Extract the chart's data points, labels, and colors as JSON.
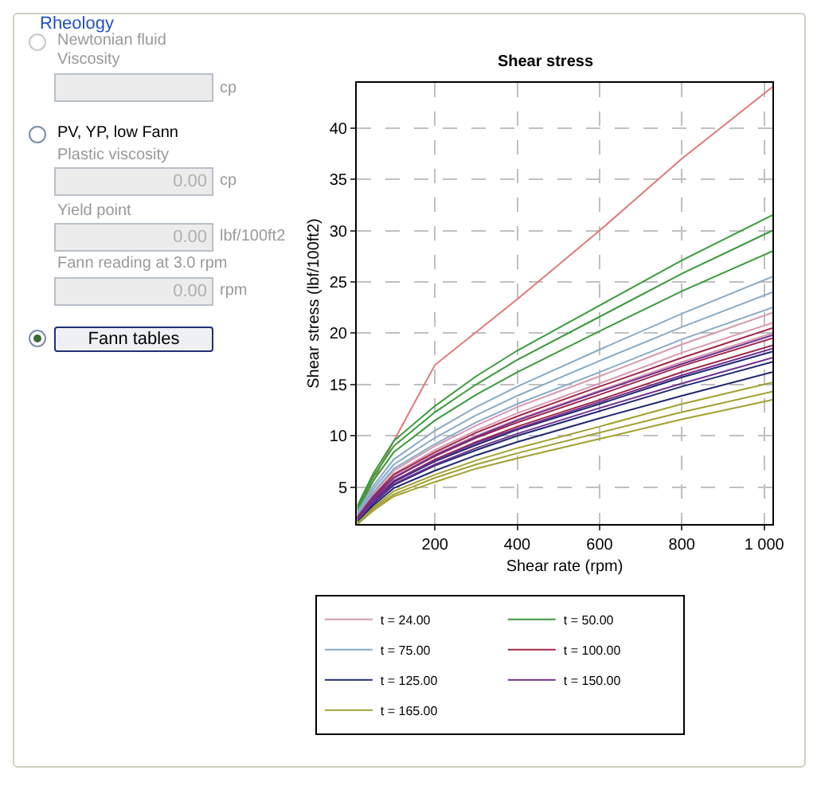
{
  "chart_data": {
    "type": "line",
    "title": "Shear stress",
    "xlabel": "Shear rate (rpm)",
    "ylabel": "Shear stress (lbf/100ft2)",
    "annotations": [
      "Rheology",
      "Newtonian fluid",
      "Viscosity",
      "cp",
      "PV, YP, low Fann",
      "Plastic viscosity",
      "0.00",
      "cp",
      "Yield point",
      "0.00",
      "lbf/100ft2",
      "Fann reading at 3.0 rpm",
      "0.00",
      "rpm",
      "Fann tables"
    ],
    "x": [
      12,
      50,
      100,
      200,
      300,
      400,
      600,
      800,
      1020
    ],
    "xlim": [
      10,
      1020
    ],
    "xticks": [
      200,
      400,
      600,
      800,
      {
        "value": 1000,
        "label": "1 000"
      }
    ],
    "ylim": [
      1.4,
      44.4
    ],
    "yticks": [
      5,
      10,
      15,
      20,
      25,
      30,
      35,
      40
    ],
    "grid": true,
    "legend": "bottom",
    "line_style": "solid",
    "series": [
      {
        "color": "#e07878",
        "x": [
          12,
          70,
          100,
          200,
          300,
          400,
          600,
          800,
          1020
        ],
        "values": [
          2.5,
          7.2,
          9.5,
          16.9,
          20.1,
          23.3,
          30,
          37,
          44
        ]
      },
      {
        "name": "t = 24.00",
        "color": "#d898b0",
        "values": [
          2.2,
          4.4,
          6.6,
          9.0,
          11.0,
          12.8,
          15.8,
          18.9,
          22
        ]
      },
      {
        "color": "#d898b0",
        "values": [
          2.1,
          4.2,
          6.3,
          8.6,
          10.5,
          12.2,
          15.1,
          18.1,
          21
        ]
      },
      {
        "color": "#d898b0",
        "values": [
          2.0,
          4.0,
          6.0,
          8.2,
          10.0,
          11.6,
          14.4,
          17.2,
          20
        ]
      },
      {
        "name": "t = 50.00",
        "color": "#3a9a3a",
        "values": [
          3.2,
          6.3,
          9.5,
          12.9,
          15.8,
          18.3,
          22.7,
          27.1,
          31.5
        ]
      },
      {
        "color": "#3a9a3a",
        "values": [
          3.0,
          6.0,
          9.0,
          12.3,
          15.0,
          17.4,
          21.6,
          25.8,
          30
        ]
      },
      {
        "color": "#3a9a3a",
        "values": [
          2.8,
          5.6,
          8.4,
          11.5,
          14.0,
          16.2,
          20.2,
          24.1,
          28
        ]
      },
      {
        "name": "t = 75.00",
        "color": "#88aac8",
        "values": [
          2.6,
          5.1,
          7.7,
          10.5,
          12.8,
          14.8,
          18.4,
          21.9,
          25.5
        ]
      },
      {
        "color": "#88aac8",
        "values": [
          2.4,
          4.8,
          7.2,
          9.8,
          12.0,
          13.9,
          17.3,
          20.6,
          24
        ]
      },
      {
        "color": "#88aac8",
        "values": [
          2.3,
          4.5,
          6.8,
          9.2,
          11.3,
          13.1,
          16.2,
          19.4,
          22.5
        ]
      },
      {
        "name": "t = 100.00",
        "color": "#a02848",
        "values": [
          2.1,
          4.1,
          6.2,
          8.4,
          10.3,
          11.9,
          14.8,
          17.6,
          20.5
        ]
      },
      {
        "color": "#a02848",
        "values": [
          2.0,
          3.9,
          5.9,
          8.0,
          9.8,
          11.3,
          14.0,
          16.8,
          19.5
        ]
      },
      {
        "color": "#a02848",
        "values": [
          1.9,
          3.8,
          5.6,
          7.7,
          9.4,
          10.9,
          13.5,
          16.2,
          18.8
        ]
      },
      {
        "name": "t = 125.00",
        "color": "#202870",
        "values": [
          1.8,
          3.6,
          5.5,
          7.5,
          9.1,
          10.6,
          13.1,
          15.7,
          18.2
        ]
      },
      {
        "color": "#202870",
        "values": [
          1.7,
          3.4,
          5.2,
          7.1,
          8.6,
          10.0,
          12.4,
          14.8,
          17.2
        ]
      },
      {
        "color": "#202870",
        "values": [
          1.6,
          3.2,
          4.9,
          6.6,
          8.1,
          9.4,
          11.7,
          13.9,
          16.2
        ]
      },
      {
        "name": "t = 150.00",
        "color": "#703090",
        "values": [
          2.0,
          4.0,
          5.9,
          8.1,
          9.9,
          11.5,
          14.3,
          17.0,
          19.8
        ]
      },
      {
        "color": "#703090",
        "values": [
          1.9,
          3.7,
          5.6,
          7.6,
          9.3,
          10.7,
          13.3,
          15.9,
          18.5
        ]
      },
      {
        "color": "#703090",
        "values": [
          1.8,
          3.5,
          5.3,
          7.2,
          8.8,
          10.2,
          12.7,
          15.1,
          17.6
        ]
      },
      {
        "name": "t = 165.00",
        "color": "#a0a030",
        "values": [
          1.5,
          3.0,
          4.6,
          6.2,
          7.6,
          8.8,
          10.9,
          13.1,
          15.2
        ]
      },
      {
        "color": "#a0a030",
        "values": [
          1.4,
          2.9,
          4.3,
          5.9,
          7.2,
          8.3,
          10.3,
          12.3,
          14.3
        ]
      },
      {
        "color": "#a0a030",
        "values": [
          1.4,
          2.7,
          4.1,
          5.5,
          6.8,
          7.8,
          9.7,
          11.6,
          13.5
        ]
      }
    ]
  }
}
